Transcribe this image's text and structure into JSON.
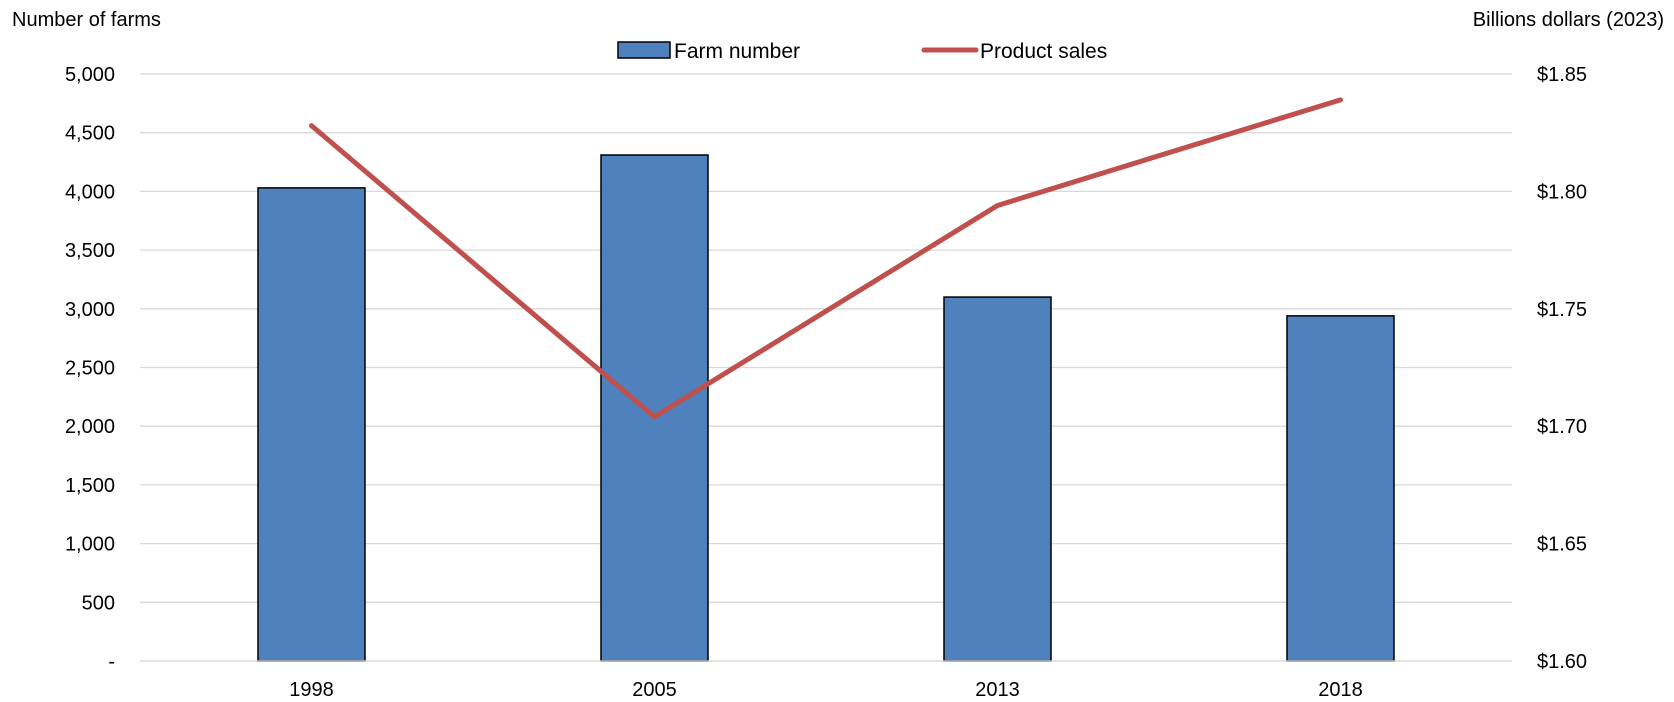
{
  "chart_data": {
    "type": "bar+line",
    "categories": [
      "1998",
      "2005",
      "2013",
      "2018"
    ],
    "series": [
      {
        "name": "Farm number",
        "type": "bar",
        "axis": "left",
        "values": [
          4030,
          4310,
          3100,
          2940
        ],
        "color": "#4f81bd"
      },
      {
        "name": "Product sales",
        "type": "line",
        "axis": "right",
        "values": [
          1.828,
          1.704,
          1.794,
          1.839
        ],
        "color": "#c0504d"
      }
    ],
    "left_axis": {
      "label": "Number of farms",
      "ylim": [
        0,
        5000
      ],
      "ticks": [
        "-",
        "500",
        "1,000",
        "1,500",
        "2,000",
        "2,500",
        "3,000",
        "3,500",
        "4,000",
        "4,500",
        "5,000"
      ]
    },
    "right_axis": {
      "label": "Billions dollars (2023)",
      "ylim": [
        1.6,
        1.85
      ],
      "ticks": [
        "$1.60",
        "$1.65",
        "$1.70",
        "$1.75",
        "$1.80",
        "$1.85"
      ]
    },
    "grid": true,
    "legend_position": "top-center"
  }
}
